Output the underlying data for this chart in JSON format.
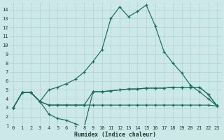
{
  "bg_color": "#cce8e8",
  "grid_color": "#aacccc",
  "line_color": "#1a6b5a",
  "xlabel": "Humidex (Indice chaleur)",
  "xlim": [
    -0.5,
    23.5
  ],
  "ylim": [
    1,
    14.8
  ],
  "xtick_labels": [
    "0",
    "1",
    "2",
    "3",
    "4",
    "5",
    "6",
    "7",
    "8",
    "9",
    "10",
    "11",
    "12",
    "13",
    "14",
    "15",
    "16",
    "17",
    "18",
    "19",
    "20",
    "21",
    "22",
    "23"
  ],
  "xtick_vals": [
    0,
    1,
    2,
    3,
    4,
    5,
    6,
    7,
    8,
    9,
    10,
    11,
    12,
    13,
    14,
    15,
    16,
    17,
    18,
    19,
    20,
    21,
    22,
    23
  ],
  "ytick_vals": [
    1,
    2,
    3,
    4,
    5,
    6,
    7,
    8,
    9,
    10,
    11,
    12,
    13,
    14
  ],
  "curve1_x": [
    0,
    1,
    2,
    3,
    4,
    5,
    6,
    7,
    8,
    9,
    10,
    11,
    12,
    13,
    14,
    15,
    16,
    17,
    18,
    19,
    20,
    21,
    22,
    23
  ],
  "curve1_y": [
    3.0,
    4.7,
    4.7,
    3.7,
    5.0,
    5.3,
    5.7,
    6.2,
    7.0,
    8.2,
    9.5,
    13.0,
    14.3,
    13.2,
    13.8,
    14.5,
    12.2,
    9.3,
    8.0,
    6.9,
    5.5,
    4.8,
    4.0,
    3.2
  ],
  "curve2_x": [
    0,
    1,
    2,
    3,
    4,
    5,
    6,
    7,
    8,
    9,
    10,
    11,
    12,
    13,
    14,
    15,
    16,
    17,
    18,
    19,
    20,
    21,
    22,
    23
  ],
  "curve2_y": [
    3.0,
    4.7,
    4.7,
    3.7,
    2.3,
    1.8,
    1.6,
    1.2,
    0.8,
    4.8,
    4.8,
    4.9,
    5.0,
    5.1,
    5.1,
    5.2,
    5.2,
    5.2,
    5.3,
    5.3,
    5.3,
    5.3,
    4.5,
    3.2
  ],
  "curve3_x": [
    0,
    1,
    2,
    3,
    4,
    5,
    6,
    7,
    8,
    9,
    10,
    11,
    12,
    13,
    14,
    15,
    16,
    17,
    18,
    19,
    20,
    21,
    22,
    23
  ],
  "curve3_y": [
    3.0,
    4.7,
    4.7,
    3.7,
    3.3,
    3.3,
    3.3,
    3.3,
    3.3,
    4.8,
    4.8,
    4.9,
    5.0,
    5.1,
    5.1,
    5.2,
    5.2,
    5.2,
    5.3,
    5.3,
    5.3,
    5.3,
    4.5,
    3.2
  ],
  "curve4_x": [
    0,
    1,
    2,
    3,
    4,
    5,
    6,
    7,
    8,
    9,
    10,
    11,
    12,
    13,
    14,
    15,
    16,
    17,
    18,
    19,
    20,
    21,
    22,
    23
  ],
  "curve4_y": [
    3.0,
    4.7,
    4.7,
    3.7,
    3.3,
    3.3,
    3.3,
    3.3,
    3.3,
    3.3,
    3.3,
    3.3,
    3.3,
    3.3,
    3.3,
    3.3,
    3.3,
    3.3,
    3.3,
    3.3,
    3.3,
    3.3,
    3.3,
    3.2
  ]
}
